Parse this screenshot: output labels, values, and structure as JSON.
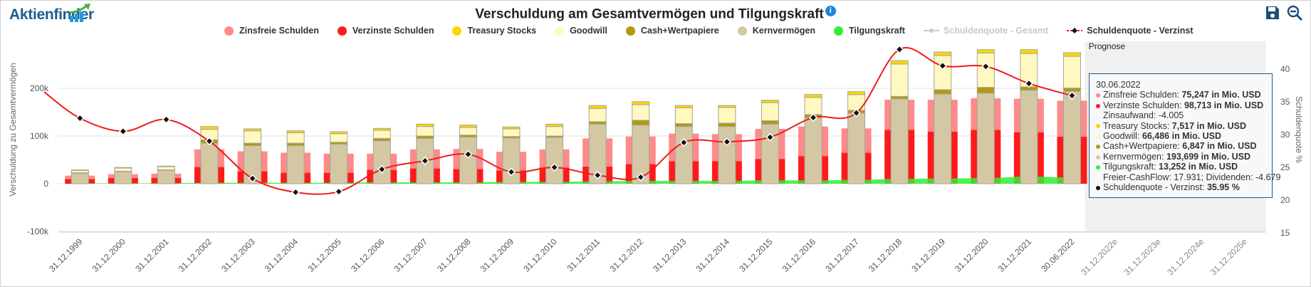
{
  "brand": "Aktienfinder",
  "toolbar": {
    "save_icon": "save-icon",
    "zoom_icon": "zoom-out-icon"
  },
  "colors": {
    "zinsfrei": "#ff8a8a",
    "verzinst": "#ff1a1a",
    "treasury": "#ffd700",
    "goodwill": "#fff8c0",
    "cash": "#b09a10",
    "kern": "#d4c8a4",
    "tilgung": "#33ee33",
    "quote_line": "#ee1c1c",
    "forecast_band": "#f0f0f0"
  },
  "chart_data": {
    "type": "bar",
    "title": "Verschuldung am Gesamtvermögen und Tilgungskraft",
    "ylabel": "Verschuldung zu Gesamtvermögen",
    "y2label": "Schuldenquote %",
    "ylim": [
      -100,
      250
    ],
    "y2lim": [
      15,
      45
    ],
    "yticks": [
      "-100k",
      "0",
      "100k",
      "200k"
    ],
    "yticks_values": [
      -100,
      0,
      100,
      200
    ],
    "y2ticks": [
      "15",
      "20",
      "25",
      "30",
      "35",
      "40"
    ],
    "forecast_label": "Prognose",
    "legend": [
      {
        "key": "zinsfrei",
        "label": "Zinsfreie Schulden",
        "visible": true
      },
      {
        "key": "verzinst",
        "label": "Verzinste Schulden",
        "visible": true
      },
      {
        "key": "treasury",
        "label": "Treasury Stocks",
        "visible": true
      },
      {
        "key": "goodwill",
        "label": "Goodwill",
        "visible": true
      },
      {
        "key": "cash",
        "label": "Cash+Wertpapiere",
        "visible": true
      },
      {
        "key": "kern",
        "label": "Kernvermögen",
        "visible": true
      },
      {
        "key": "tilgung",
        "label": "Tilgungskraft",
        "visible": true
      },
      {
        "key": "quote_gesamt",
        "label": "Schuldenquote - Gesamt",
        "visible": false
      },
      {
        "key": "quote_verzinst",
        "label": "Schuldenquote - Verzinst",
        "visible": true
      }
    ],
    "categories": [
      "31.12.1999",
      "31.12.2000",
      "31.12.2001",
      "31.12.2002",
      "31.12.2003",
      "31.12.2004",
      "31.12.2005",
      "31.12.2006",
      "31.12.2007",
      "31.12.2008",
      "31.12.2009",
      "31.12.2010",
      "31.12.2011",
      "31.12.2012",
      "31.12.2013",
      "31.12.2014",
      "31.12.2015",
      "31.12.2016",
      "31.12.2017",
      "31.12.2018",
      "31.12.2019",
      "31.12.2020",
      "31.12.2021",
      "30.06.2022",
      "31.12.2022e",
      "31.12.2023e",
      "31.12.2024e",
      "31.12.2025e"
    ],
    "forecast_start_index": 24,
    "units": "thousand Mio. USD",
    "series": {
      "zinsfrei": [
        7,
        8,
        9,
        37,
        42,
        42,
        40,
        34,
        40,
        42,
        39,
        38,
        59,
        58,
        58,
        57,
        63,
        62,
        51,
        63,
        67,
        66,
        70,
        75.247
      ],
      "verzinst": [
        10,
        12,
        12,
        35,
        26,
        23,
        23,
        29,
        32,
        31,
        28,
        34,
        36,
        41,
        47,
        47,
        52,
        58,
        65,
        113,
        109,
        113,
        108,
        98.713
      ],
      "kern": [
        22,
        25,
        28,
        85,
        80,
        80,
        83,
        90,
        95,
        98,
        96,
        97,
        125,
        123,
        120,
        120,
        125,
        138,
        148,
        178,
        188,
        190,
        196,
        193.699
      ],
      "cash": [
        1,
        1,
        1,
        7,
        5,
        5,
        4,
        5,
        5,
        4,
        3,
        3,
        5,
        10,
        6,
        7,
        7,
        7,
        6,
        5,
        9,
        12,
        7,
        6.847
      ],
      "goodwill": [
        5,
        7,
        7,
        22,
        26,
        22,
        18,
        17,
        20,
        16,
        16,
        20,
        28,
        33,
        33,
        33,
        38,
        36,
        33,
        68,
        72,
        72,
        70,
        66.486
      ],
      "treasury": [
        1,
        1,
        1,
        6,
        4,
        4,
        4,
        4,
        5,
        5,
        4,
        5,
        6,
        6,
        5,
        4,
        5,
        6,
        6,
        7,
        7,
        7,
        8,
        7.517
      ],
      "tilgung": [
        1,
        1,
        1,
        2,
        2,
        2,
        2,
        3,
        3,
        3,
        4,
        4,
        5,
        6,
        6,
        6,
        7,
        7,
        8,
        10,
        11,
        12,
        15,
        13.252
      ],
      "quote_verzinst": [
        32.5,
        30.5,
        32.3,
        29,
        23.3,
        21.2,
        21.3,
        24.7,
        26,
        27,
        24.3,
        25,
        23.8,
        23.5,
        28.8,
        28.9,
        29.6,
        32.6,
        33.3,
        43,
        40.5,
        40.4,
        37.8,
        35.95
      ]
    }
  },
  "tooltip": {
    "date": "30.06.2022",
    "rows": [
      {
        "key": "zinsfrei",
        "label": "Zinsfreie Schulden: ",
        "value": "75,247 in Mio. USD"
      },
      {
        "key": "verzinst",
        "label": "Verzinste Schulden: ",
        "value": "98,713 in Mio. USD",
        "extra": "Zinsaufwand: -4.005"
      },
      {
        "key": "treasury",
        "label": "Treasury Stocks: ",
        "value": "7,517 in Mio. USD"
      },
      {
        "key": "goodwill",
        "label": "Goodwill: ",
        "value": "66,486 in Mio. USD"
      },
      {
        "key": "cash",
        "label": "Cash+Wertpapiere: ",
        "value": "6,847 in Mio. USD"
      },
      {
        "key": "kern",
        "label": "Kernvermögen: ",
        "value": "193,699 in Mio. USD"
      },
      {
        "key": "tilgung",
        "label": "Tilgungskraft: ",
        "value": "13,252 in Mio. USD",
        "extra": "Freier-CashFlow: 17.931; Dividenden: -4.679"
      },
      {
        "key": "quote",
        "label": "Schuldenquote - Verzinst: ",
        "value": "35.95 %"
      }
    ]
  }
}
